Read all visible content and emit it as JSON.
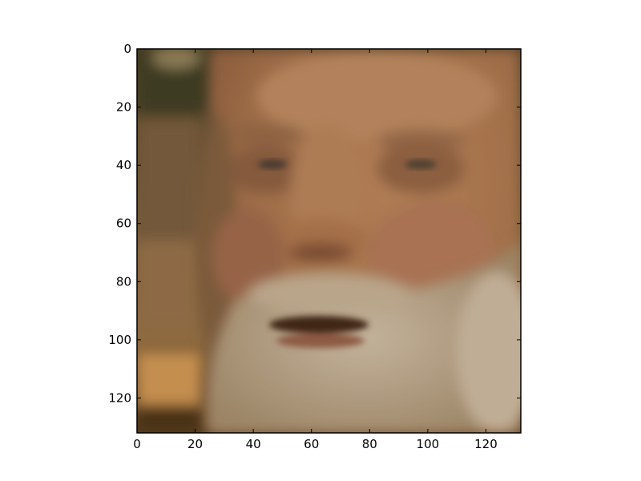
{
  "image": {
    "subject": "face-photo",
    "colors": {
      "background_left": "#6b5233",
      "background_top_left": "#3f3a20",
      "skin": "#a77550",
      "skin_shadow": "#8a5a38",
      "beard": "#b8a58c",
      "mouth_shadow": "#3d2418",
      "background_bottom_left": "#c08c4e"
    }
  },
  "axes": {
    "x_range": [
      0,
      132
    ],
    "y_range": [
      0,
      132
    ],
    "y_inverted": true,
    "x_tick_values": [
      0,
      20,
      40,
      60,
      80,
      100,
      120
    ],
    "y_tick_values": [
      0,
      20,
      40,
      60,
      80,
      100,
      120
    ],
    "x_ticks": [
      "0",
      "20",
      "40",
      "60",
      "80",
      "100",
      "120"
    ],
    "y_ticks": [
      "0",
      "20",
      "40",
      "60",
      "80",
      "100",
      "120"
    ],
    "grid": false
  }
}
